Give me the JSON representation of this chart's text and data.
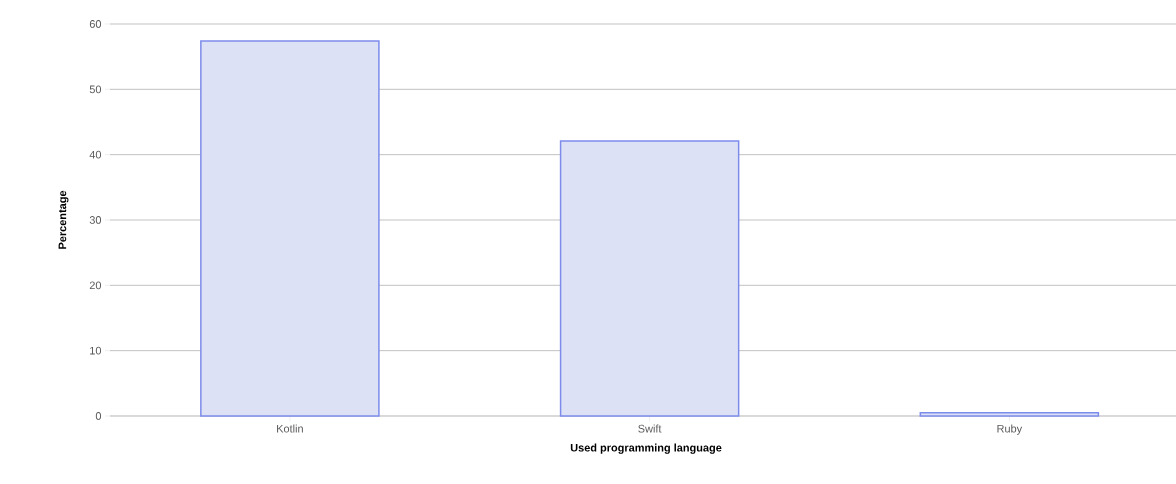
{
  "chart_data": {
    "type": "bar",
    "xlabel": "Used programming language",
    "ylabel": "Percentage",
    "categories": [
      "Kotlin",
      "Swift",
      "Ruby"
    ],
    "values": [
      57.4,
      42.1,
      0.5
    ],
    "color": "#dde1f6",
    "ylim": [
      0,
      60
    ],
    "yticks": [
      0,
      10,
      20,
      30,
      40,
      50,
      60
    ],
    "grid": "y"
  }
}
